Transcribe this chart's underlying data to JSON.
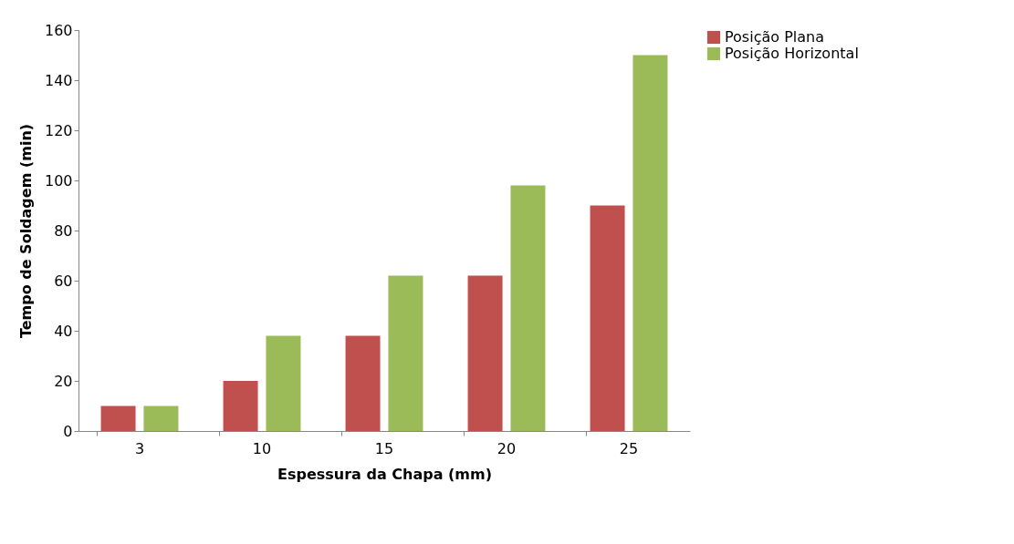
{
  "chart_data": {
    "type": "bar",
    "xlabel": "Espessura da Chapa (mm)",
    "ylabel": "Tempo de Soldagem (min)",
    "categories": [
      "3",
      "10",
      "15",
      "20",
      "25"
    ],
    "series": [
      {
        "name": "Posição Plana",
        "color": "#c0504d",
        "values": [
          10,
          20,
          38,
          62,
          90
        ]
      },
      {
        "name": "Posição Horizontal",
        "color": "#9bbb59",
        "values": [
          10,
          38,
          62,
          98,
          150
        ]
      }
    ],
    "ylim": [
      0,
      160
    ],
    "yticks": [
      0,
      20,
      40,
      60,
      80,
      100,
      120,
      140,
      160
    ],
    "grid": false,
    "legend": "right"
  }
}
